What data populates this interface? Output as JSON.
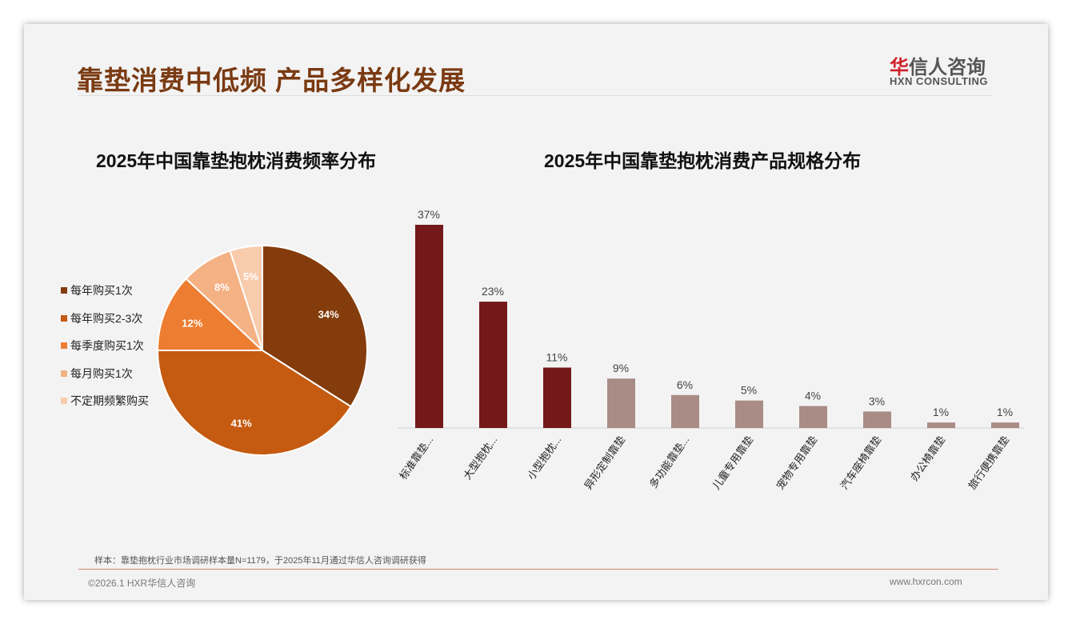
{
  "header": {
    "title": "靠垫消费中低频 产品多样化发展",
    "logo_cn_red": "华",
    "logo_cn": "信人咨询",
    "logo_en": "HXN CONSULTING"
  },
  "footer": {
    "note": "样本：靠垫抱枕行业市场调研样本量N=1179，于2025年11月通过华信人咨询调研获得",
    "copyright": "©2026.1 HXR华信人咨询",
    "url": "www.hxrcon.com"
  },
  "chart_data": [
    {
      "type": "pie",
      "title": "2025年中国靠垫抱枕消费频率分布",
      "legend_position": "left",
      "categories": [
        "每年购买1次",
        "每年购买2-3次",
        "每季度购买1次",
        "每月购买1次",
        "不定期频繁购买"
      ],
      "values": [
        34,
        41,
        12,
        8,
        5
      ],
      "labels": [
        "34%",
        "41%",
        "12%",
        "8%",
        "5%"
      ],
      "colors": [
        "#843c0c",
        "#c55a11",
        "#ed7d31",
        "#f4b183",
        "#f8cbad"
      ]
    },
    {
      "type": "bar",
      "title": "2025年中国靠垫抱枕消费产品规格分布",
      "categories": [
        "标准靠垫...",
        "大型抱枕...",
        "小型抱枕...",
        "异形定制靠垫",
        "多功能靠垫...",
        "儿童专用靠垫",
        "宠物专用靠垫",
        "汽车座椅靠垫",
        "办公椅靠垫",
        "旅行便携靠垫"
      ],
      "values": [
        37,
        23,
        11,
        9,
        6,
        5,
        4,
        3,
        1,
        1
      ],
      "labels": [
        "37%",
        "23%",
        "11%",
        "9%",
        "6%",
        "5%",
        "4%",
        "3%",
        "1%",
        "1%"
      ],
      "colors": [
        "#74181a",
        "#74181a",
        "#74181a",
        "#a98c86",
        "#a98c86",
        "#a98c86",
        "#a98c86",
        "#a98c86",
        "#a98c86",
        "#a98c86"
      ],
      "ylim": [
        0,
        40
      ]
    }
  ]
}
